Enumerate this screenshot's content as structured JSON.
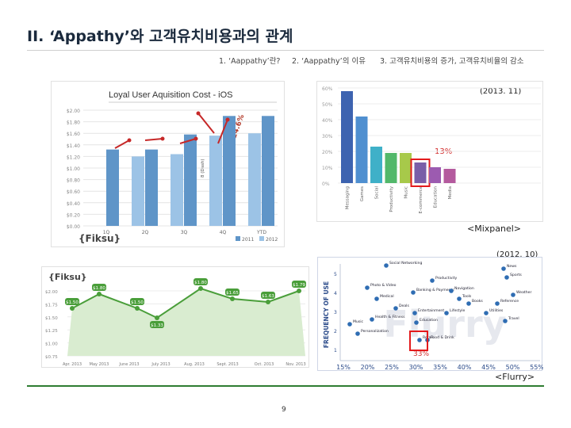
{
  "slide": {
    "title": "II. ‘Appathy’와 고객유치비용과의 관계",
    "nav": [
      "1. ‘Aappathy’란?",
      "2. ‘Aappathy’의 이유",
      "3. 고객유치비용의 증가, 고객유치비율의 감소"
    ],
    "page_number": "9"
  },
  "colors": {
    "accent_green": "#2e7d32",
    "highlight_red": "#e31a1c",
    "bar_blue": "#6fa3cf",
    "bar_purple": "#7a5ea8"
  },
  "chart_fiksu_ios": {
    "title": "Loyal User Aquisition Cost - iOS",
    "logo": "{Fiksu}",
    "annotation": "24.6%",
    "side_label": "8 (Dash)",
    "y_ticks": [
      "$2.00",
      "$1.80",
      "$1.60",
      "$1.40",
      "$1.20",
      "$1.00",
      "$0.80",
      "$0.60",
      "$0.40",
      "$0.20",
      "$0.00"
    ],
    "categories": [
      "1Q",
      "2Q",
      "3Q",
      "4Q",
      "YTD"
    ],
    "legend": [
      "2011",
      "2012"
    ]
  },
  "chart_mixpanel": {
    "date": "(2013. 11)",
    "source": "<Mixpanel>",
    "highlight_label": "13%",
    "y_ticks": [
      "60%",
      "50%",
      "40%",
      "30%",
      "20%",
      "10%",
      "0%"
    ],
    "categories": [
      "Messaging",
      "Games",
      "Social",
      "Productivity",
      "Music",
      "E-commerce",
      "Education",
      "Media"
    ]
  },
  "chart_fiksu_line": {
    "logo": "{Fiksu}",
    "point_labels": [
      "$1.50",
      "$1.80",
      "$1.50",
      "$1.33",
      "$1.80",
      "$1.65",
      "$1.63",
      "$1.79"
    ],
    "y_ticks": [
      "$2.00",
      "$1.75",
      "$1.50",
      "$1.25",
      "$1.00",
      "$0.75"
    ],
    "x_ticks": [
      "Apr. 2013",
      "May 2013",
      "June 2013",
      "July 2013",
      "Aug. 2013",
      "Sept. 2013",
      "Oct. 2013",
      "Nov. 2013"
    ]
  },
  "chart_flurry": {
    "date": "(2012. 10)",
    "source": "<Flurry>",
    "y_label": "FREQUENCY OF USE",
    "highlight_label": "33%",
    "x_ticks": [
      "15%",
      "20%",
      "25%",
      "30%",
      "35%",
      "40%",
      "45%",
      "50%",
      "55%"
    ],
    "y_ticks": [
      "5",
      "4",
      "3",
      "2",
      "1"
    ],
    "points": [
      "Social Networking",
      "News",
      "Sports",
      "Productivity",
      "Photo & Video",
      "Weather",
      "Banking & Payments",
      "Navigation",
      "Reference",
      "Medical",
      "Tools",
      "Utilities",
      "Books",
      "Health & Fitness",
      "Deals",
      "Education",
      "Entertainment",
      "Lifestyle",
      "Music",
      "Travel",
      "Personalization",
      "Food & Drink",
      "Retail"
    ]
  }
}
